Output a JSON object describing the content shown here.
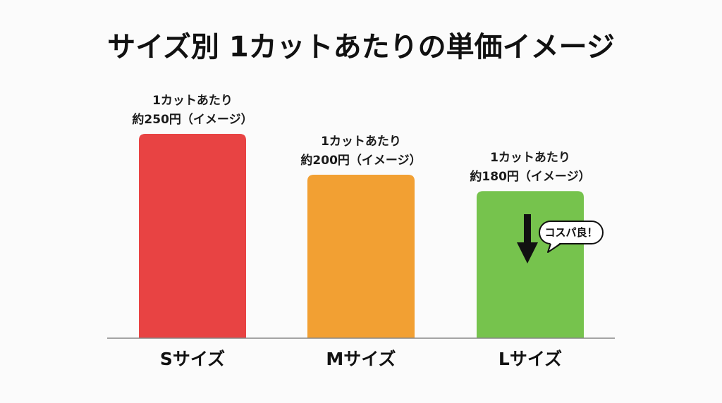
{
  "chart_data": {
    "type": "bar",
    "title": "サイズ別 1カットあたりの単価イメージ",
    "xlabel": "",
    "ylabel": "",
    "categories": [
      "Sサイズ",
      "Mサイズ",
      "Lサイズ"
    ],
    "values": [
      250,
      200,
      180
    ],
    "ylim": [
      0,
      250
    ],
    "data_labels": [
      [
        "1カットあたり",
        "約250円（イメージ）"
      ],
      [
        "1カットあたり",
        "約200円（イメージ）"
      ],
      [
        "1カットあたり",
        "約180円（イメージ）"
      ]
    ],
    "colors": [
      "#e84343",
      "#f2a033",
      "#76c34d"
    ],
    "grid": false,
    "legend": "none",
    "annotation": {
      "text": "コスパ良！",
      "category": "Lサイズ",
      "icon": "down-arrow-icon"
    }
  }
}
